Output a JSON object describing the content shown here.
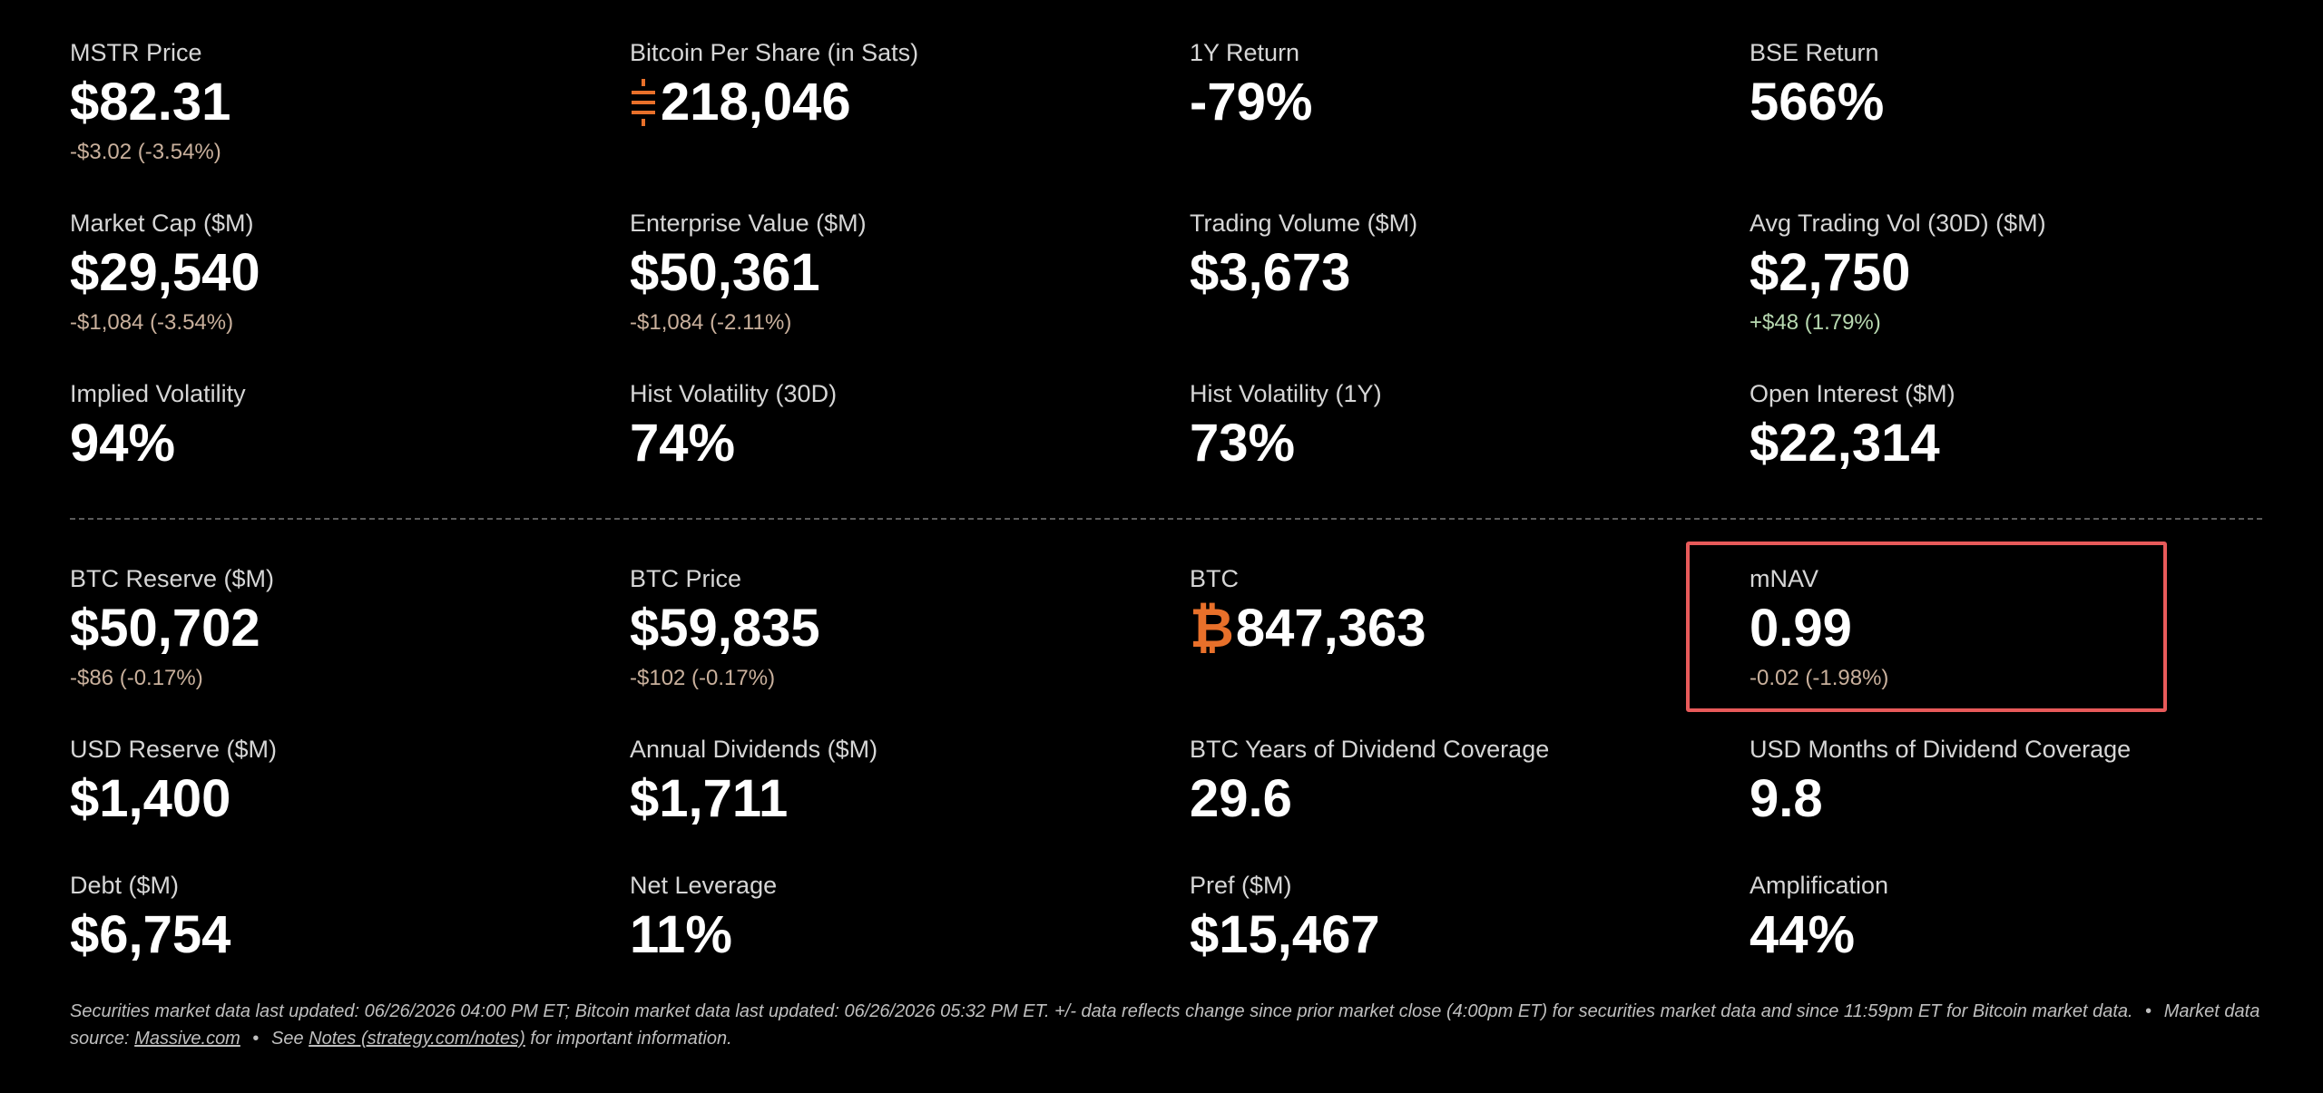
{
  "top_metrics": [
    {
      "label": "MSTR Price",
      "value": "$82.31",
      "change": "-$3.02 (-3.54%)"
    },
    {
      "label": "Bitcoin Per Share (in Sats)",
      "value": "218,046",
      "icon": "sats-icon"
    },
    {
      "label": "1Y Return",
      "value": "-79%"
    },
    {
      "label": "BSE Return",
      "value": "566%"
    },
    {
      "label": "Market Cap ($M)",
      "value": "$29,540",
      "change": "-$1,084 (-3.54%)"
    },
    {
      "label": "Enterprise Value ($M)",
      "value": "$50,361",
      "change": "-$1,084 (-2.11%)"
    },
    {
      "label": "Trading Volume ($M)",
      "value": "$3,673"
    },
    {
      "label": "Avg Trading Vol (30D) ($M)",
      "value": "$2,750",
      "change": "+$48 (1.79%)"
    },
    {
      "label": "Implied Volatility",
      "value": "94%"
    },
    {
      "label": "Hist Volatility (30D)",
      "value": "74%"
    },
    {
      "label": "Hist Volatility (1Y)",
      "value": "73%"
    },
    {
      "label": "Open Interest ($M)",
      "value": "$22,314"
    }
  ],
  "bottom_metrics": [
    {
      "label": "BTC Reserve ($M)",
      "value": "$50,702",
      "change": "-$86 (-0.17%)"
    },
    {
      "label": "BTC Price",
      "value": "$59,835",
      "change": "-$102 (-0.17%)"
    },
    {
      "label": "BTC",
      "value": "847,363",
      "icon": "bitcoin-icon",
      "icon_glyph": "₿"
    },
    {
      "label": "mNAV",
      "value": "0.99",
      "change": "-0.02 (-1.98%)"
    },
    {
      "label": "USD Reserve ($M)",
      "value": "$1,400"
    },
    {
      "label": "Annual Dividends ($M)",
      "value": "$1,711"
    },
    {
      "label": "BTC Years of Dividend Coverage",
      "value": "29.6"
    },
    {
      "label": "USD Months of Dividend Coverage",
      "value": "9.8"
    },
    {
      "label": "Debt ($M)",
      "value": "$6,754"
    },
    {
      "label": "Net Leverage",
      "value": "11%"
    },
    {
      "label": "Pref ($M)",
      "value": "$15,467"
    },
    {
      "label": "Amplification",
      "value": "44%"
    }
  ],
  "footer": {
    "line1": "Securities market data last updated: 06/26/2026 04:00 PM ET; Bitcoin market data last updated: 06/26/2026 05:32 PM ET. +/- data reflects change since prior market close (4:00pm ET) for securities market data and since 11:59pm ET for Bitcoin market data.",
    "bullet": "•",
    "source_prefix": "Market data source:",
    "source_link": "Massive.com",
    "see_prefix": "See",
    "notes_link": "Notes (strategy.com/notes)",
    "see_suffix": "for important information."
  },
  "colors": {
    "background": "#000000",
    "accent_orange": "#e8702a",
    "negative_change": "#c9b09c",
    "positive_change": "#b7d8b0",
    "highlight_border": "#e85a5a"
  }
}
